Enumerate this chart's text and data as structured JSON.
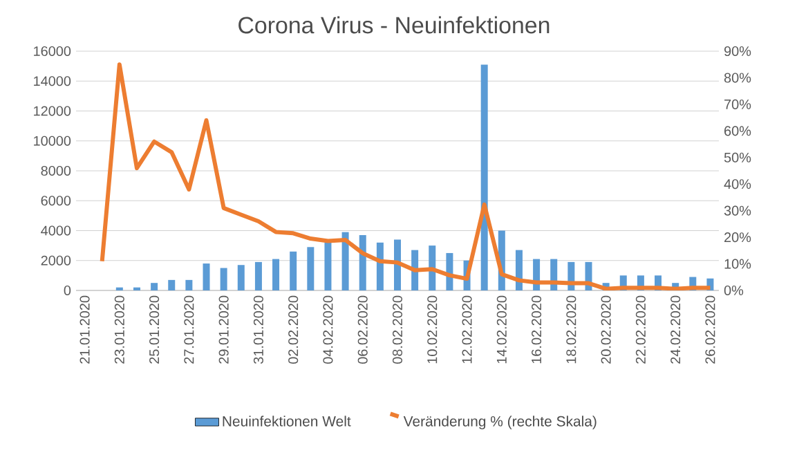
{
  "chart_data": {
    "type": "bar",
    "title": "Corona Virus - Neuinfektionen",
    "categories": [
      "21.01.2020",
      null,
      "23.01.2020",
      null,
      "25.01.2020",
      null,
      "27.01.2020",
      null,
      "29.01.2020",
      null,
      "31.01.2020",
      null,
      "02.02.2020",
      null,
      "04.02.2020",
      null,
      "06.02.2020",
      null,
      "08.02.2020",
      null,
      "10.02.2020",
      null,
      "12.02.2020",
      null,
      "14.02.2020",
      null,
      "16.02.2020",
      null,
      "18.02.2020",
      null,
      "20.02.2020",
      null,
      "22.02.2020",
      null,
      "24.02.2020",
      null,
      "26.02.2020"
    ],
    "series": [
      {
        "name": "Neuinfektionen Welt",
        "type": "bar",
        "color": "#5b9bd5",
        "values": [
          null,
          null,
          200,
          200,
          500,
          700,
          700,
          1800,
          1500,
          1700,
          1900,
          2100,
          2600,
          2900,
          3200,
          3900,
          3700,
          3200,
          3400,
          2700,
          3000,
          2500,
          2000,
          15100,
          4000,
          2700,
          2100,
          2100,
          1900,
          1900,
          500,
          1000,
          1000,
          1000,
          500,
          900,
          800
        ]
      },
      {
        "name": "Veränderung % (rechte Skala)",
        "type": "line",
        "axis": "y2",
        "color": "#ed7d31",
        "values": [
          null,
          11,
          85,
          46,
          56,
          52,
          38,
          64,
          31,
          28.5,
          26,
          22,
          21.5,
          19.5,
          18.6,
          19,
          14,
          11,
          10.5,
          7.6,
          8,
          5.7,
          4.4,
          32.3,
          6.1,
          3.8,
          3,
          3,
          2.7,
          2.7,
          0.6,
          1,
          1,
          1,
          0.6,
          1,
          1
        ]
      }
    ],
    "ylim": [
      0,
      16000
    ],
    "yticks": [
      0,
      2000,
      4000,
      6000,
      8000,
      10000,
      12000,
      14000,
      16000
    ],
    "y2lim": [
      0,
      90
    ],
    "y2ticks": [
      {
        "value": 0,
        "label": "0%"
      },
      {
        "value": 10,
        "label": "10%"
      },
      {
        "value": 20,
        "label": "20%"
      },
      {
        "value": 30,
        "label": "30%"
      },
      {
        "value": 40,
        "label": "40%"
      },
      {
        "value": 50,
        "label": "50%"
      },
      {
        "value": 60,
        "label": "60%"
      },
      {
        "value": 70,
        "label": "70%"
      },
      {
        "value": 80,
        "label": "80%"
      },
      {
        "value": 90,
        "label": "90%"
      }
    ],
    "grid": "y",
    "legend": "bottom"
  }
}
